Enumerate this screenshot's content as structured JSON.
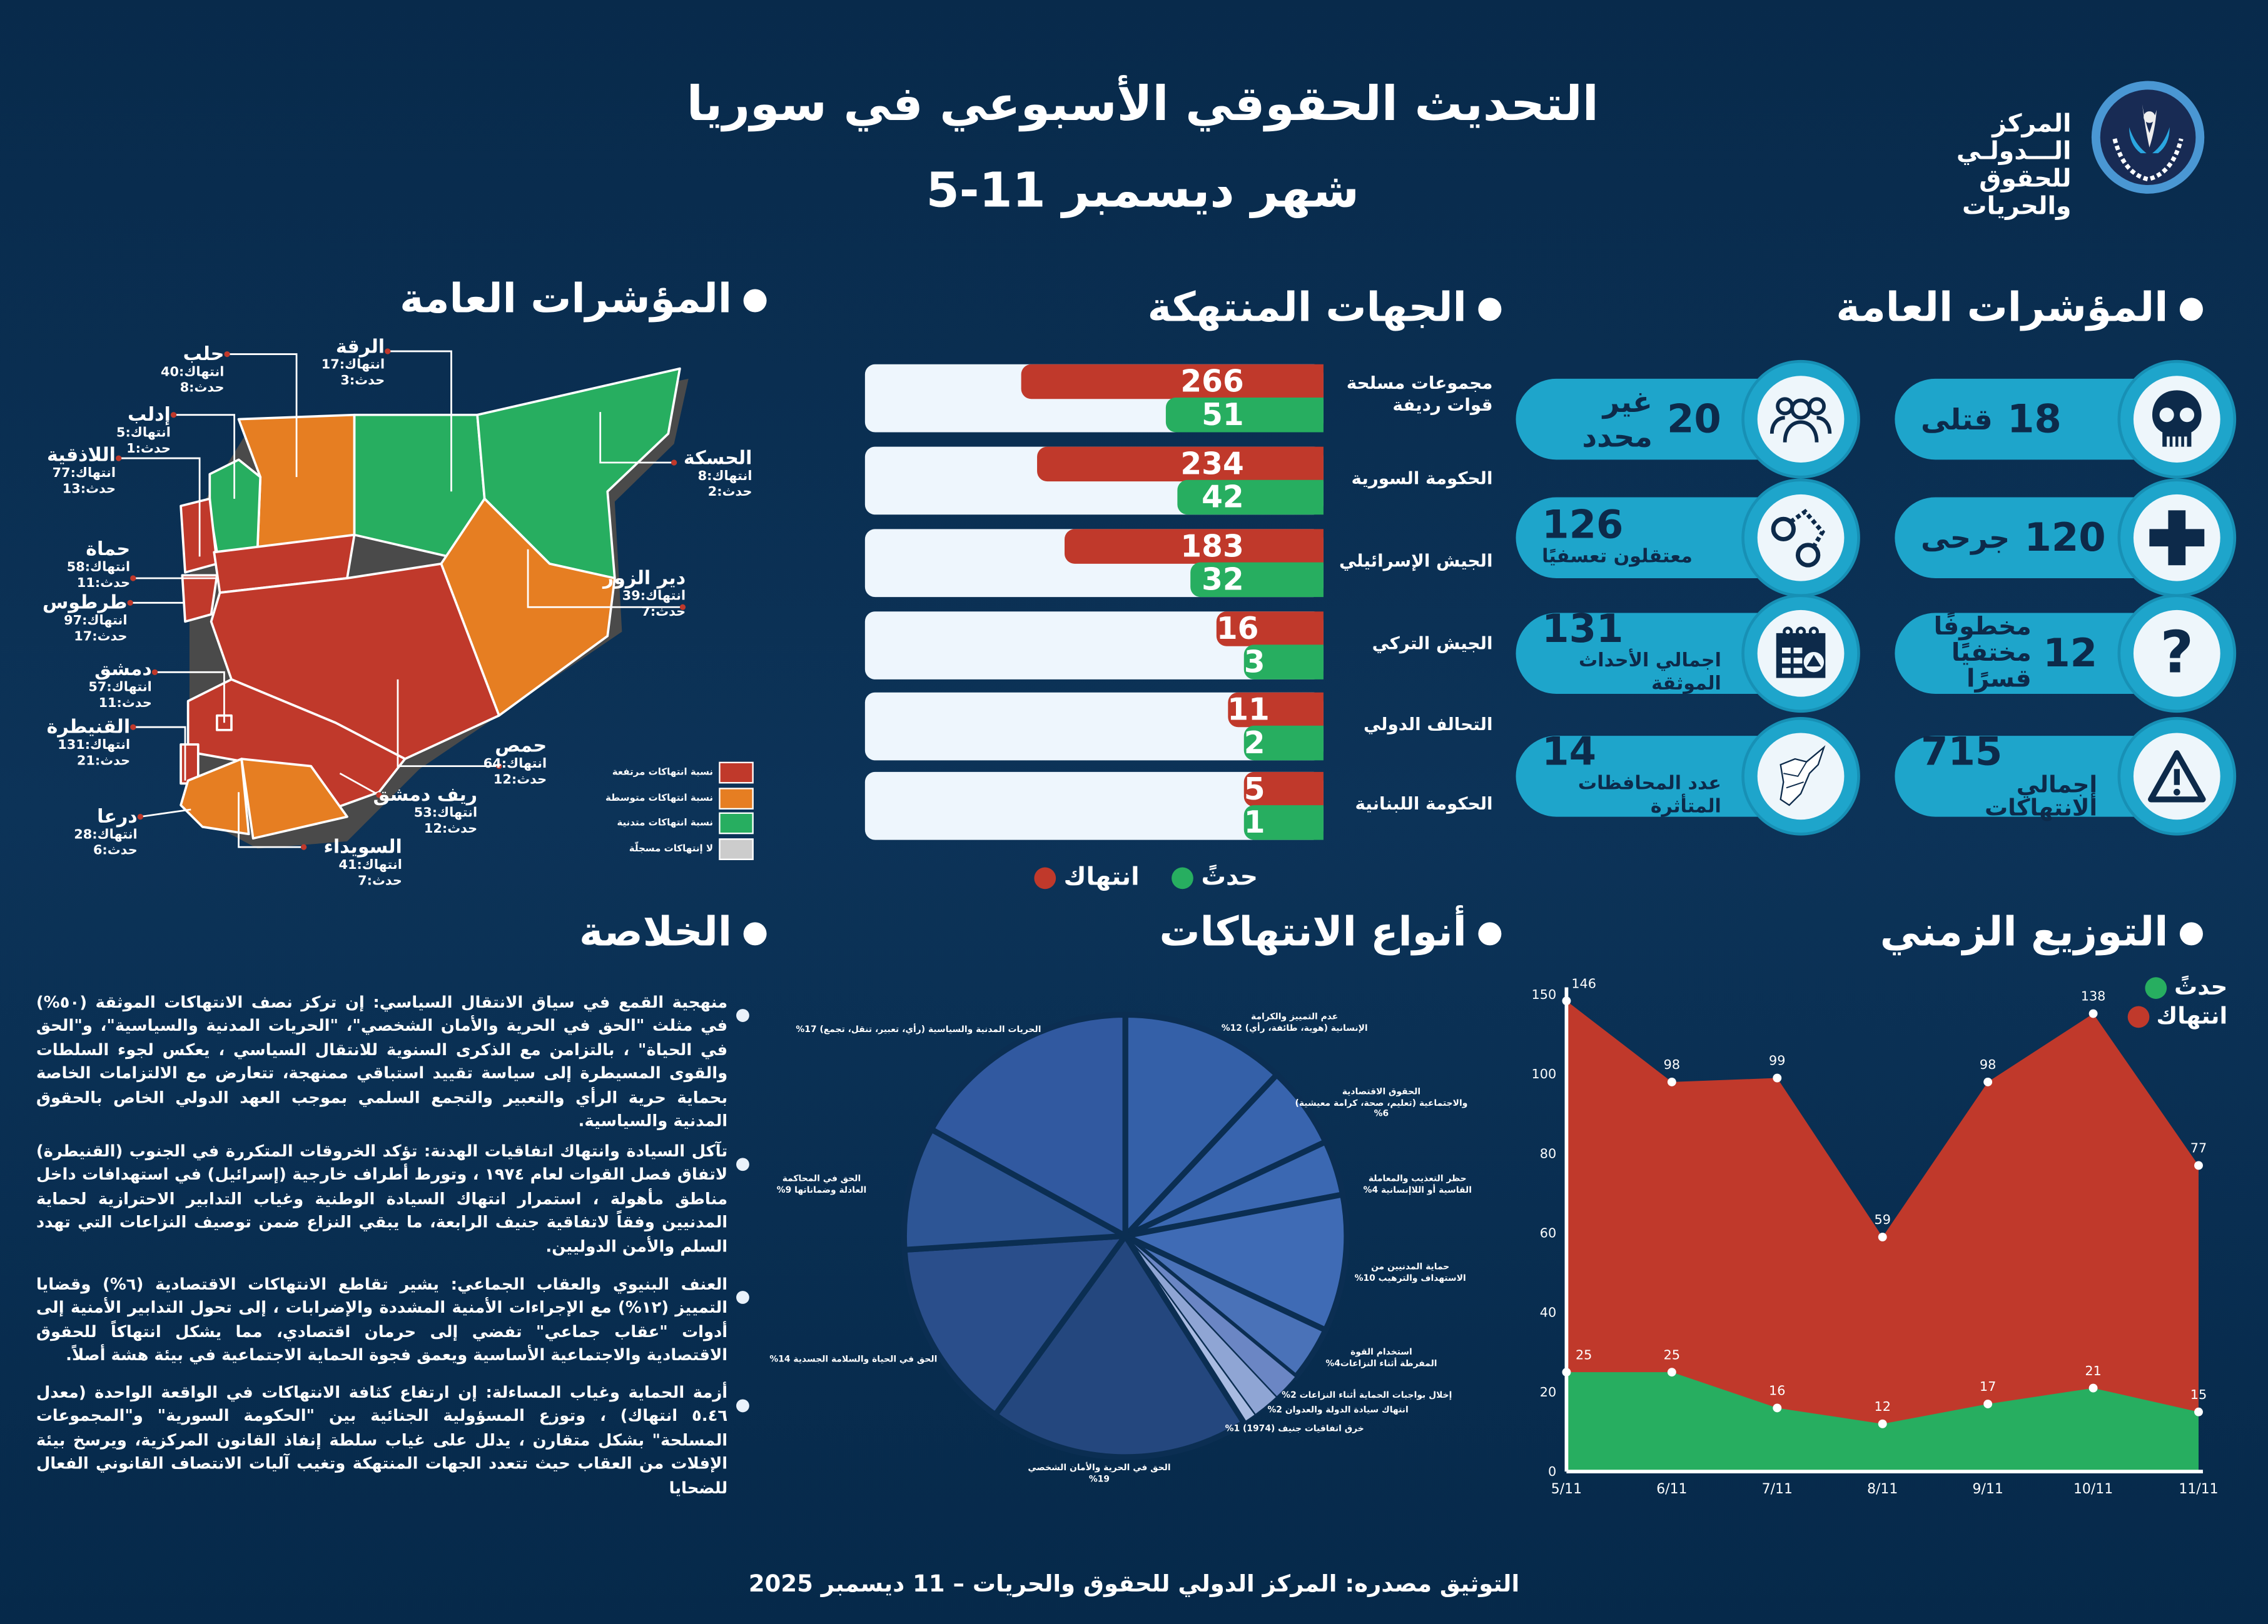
{
  "header": {
    "title": "التحديث الحقوقي الأسبوعي في سوريا",
    "subtitle": "شهر ديسمبر 11-5",
    "logo_text_1": "المركز الـــدولـي",
    "logo_text_2": "للحقوق والحريات"
  },
  "sections": {
    "indicators": "المؤشرات العامة",
    "map": "المؤشرات العامة",
    "actors": "الجهات المنتهكة",
    "timeline": "التوزيع الزمني",
    "types": "أنواع الانتهاكات",
    "summary": "الخلاصة"
  },
  "indicators": [
    {
      "value": "18",
      "label": "قتلى",
      "icon": "skull-icon"
    },
    {
      "value": "120",
      "label": "جرحى",
      "icon": "plus-icon"
    },
    {
      "value": "12",
      "label": "مخطوفًا",
      "label2": "مختفيًا قسرًا",
      "icon": "question-icon"
    },
    {
      "value": "715",
      "label": "إجمالي الانتهاكات",
      "icon": "warning-icon"
    },
    {
      "value": "20",
      "label": "غير محدد",
      "icon": "group-icon"
    },
    {
      "value": "126",
      "label": "معتقلون تعسفيًا",
      "icon": "handcuffs-icon"
    },
    {
      "value": "131",
      "label": "اجمالي الأحداث الموثقة",
      "icon": "calendar-alert-icon"
    },
    {
      "value": "14",
      "label": "عدد المحافظات المتأثرة",
      "icon": "syria-map-icon"
    }
  ],
  "actors": {
    "rows": [
      {
        "name": "مجموعات مسلحة",
        "name2": "قوات رديفة",
        "violations": 266,
        "incidents": 51
      },
      {
        "name": "الحكومة السورية",
        "violations": 234,
        "incidents": 42
      },
      {
        "name": "الجيش الإسرائيلي",
        "violations": 183,
        "incidents": 32
      },
      {
        "name": "الجيش التركي",
        "violations": 16,
        "incidents": 3
      },
      {
        "name": "التحالف الدولي",
        "violations": 11,
        "incidents": 2
      },
      {
        "name": "الحكومة اللبنانية",
        "violations": 5,
        "incidents": 1
      }
    ],
    "legend_violation": "انتهاك",
    "legend_incident": "حدثً"
  },
  "colors": {
    "violation": "#c0392b",
    "incident": "#27ae60",
    "medium": "#e67e22",
    "none": "#cccccc",
    "accent": "#1ea5cb"
  },
  "map": {
    "violation_label": "انتهاك",
    "incident_label": "حدث",
    "governorates": [
      {
        "name": "حلب",
        "violations": 40,
        "incidents": 8,
        "level": "medium"
      },
      {
        "name": "الرقة",
        "violations": 17,
        "incidents": 3,
        "level": "low"
      },
      {
        "name": "إدلب",
        "violations": 5,
        "incidents": 1,
        "level": "low"
      },
      {
        "name": "اللاذقية",
        "violations": 77,
        "incidents": 13,
        "level": "high"
      },
      {
        "name": "الحسكة",
        "violations": 8,
        "incidents": 2,
        "level": "low"
      },
      {
        "name": "حماة",
        "violations": 58,
        "incidents": 11,
        "level": "high"
      },
      {
        "name": "طرطوس",
        "violations": 97,
        "incidents": 17,
        "level": "high"
      },
      {
        "name": "دير الزور",
        "violations": 39,
        "incidents": 7,
        "level": "medium"
      },
      {
        "name": "دمشق",
        "violations": 57,
        "incidents": 11,
        "level": "high"
      },
      {
        "name": "القنيطرة",
        "violations": 131,
        "incidents": 21,
        "level": "high"
      },
      {
        "name": "حمص",
        "violations": 64,
        "incidents": 12,
        "level": "high"
      },
      {
        "name": "ريف دمشق",
        "violations": 53,
        "incidents": 12,
        "level": "high"
      },
      {
        "name": "درعا",
        "violations": 28,
        "incidents": 6,
        "level": "medium"
      },
      {
        "name": "السويداء",
        "violations": 41,
        "incidents": 7,
        "level": "medium"
      }
    ],
    "legend": [
      {
        "label": "نسبة انتهاكات مرتفعة",
        "color": "#c0392b"
      },
      {
        "label": "نسبة انتهاكات متوسطة",
        "color": "#e67e22"
      },
      {
        "label": "نسبة انتهاكات متدنية",
        "color": "#27ae60"
      },
      {
        "label": "لا إنتهاكات مسجلّة",
        "color": "#cccccc"
      }
    ]
  },
  "chart_data": [
    {
      "type": "area",
      "categories": [
        "5/11",
        "6/11",
        "7/11",
        "8/11",
        "9/11",
        "10/11",
        "11/11"
      ],
      "yticks": [
        0,
        20,
        40,
        60,
        80,
        100,
        150
      ],
      "ylim": [
        0,
        150
      ],
      "legend_placement": "top-right",
      "series": [
        {
          "name": "انتهاك",
          "color": "#c0392b",
          "values": [
            146,
            98,
            99,
            59,
            98,
            138,
            77
          ]
        },
        {
          "name": "حدثً",
          "color": "#27ae60",
          "values": [
            25,
            25,
            16,
            12,
            17,
            21,
            15
          ]
        }
      ]
    },
    {
      "type": "pie",
      "slices": [
        {
          "label": "عدم التمييز والكرامة\nالإنسانية (هوية، طائفة، رأي)  12%",
          "value": 12,
          "color": "#3460a8"
        },
        {
          "label": "الحقوق الاقتصادية\nوالاجتماعية (تعليم، صحة، كرامة معيشية)\n%6",
          "value": 6,
          "color": "#3864ae"
        },
        {
          "label": "حظر التعذيب والمعاملة\nالقاسية أو اللاإنسانية  4%",
          "value": 4,
          "color": "#3b68b2"
        },
        {
          "label": "حماية المدنيين من\nالاستهداف والترهيب  10%",
          "value": 10,
          "color": "#3f6bb5"
        },
        {
          "label": "استخدام القوة\nالمفرطة أثناء النزاعات4%",
          "value": 4,
          "color": "#4a72b8"
        },
        {
          "label": "إخلال بواجبات الحماية أثناء النزاعات 2%",
          "value": 2,
          "color": "#6b86c4"
        },
        {
          "label": "انتهاك سيادة الدولة والعدوان  2%",
          "value": 2,
          "color": "#8fa5d4"
        },
        {
          "label": "خرق اتفاقيات جنيف (1974)  1%",
          "value": 1,
          "color": "#a9bbe1"
        },
        {
          "label": "الحق في الحرية والأمان الشخصي\n%19",
          "value": 19,
          "color": "#24477e"
        },
        {
          "label": "الحق في الحياة والسلامة الجسدية 14%",
          "value": 14,
          "color": "#2a4e8b"
        },
        {
          "label": "الحق في المحاكمة\nالعادلة وضماناتها 9%",
          "value": 9,
          "color": "#2d5595"
        },
        {
          "label": "الحريات المدنية والسياسية (رأي، تعبير، تنقل، تجمع) 17%",
          "value": 17,
          "color": "#3159a0"
        }
      ]
    }
  ],
  "summary": [
    "منهجية القمع في سياق الانتقال السياسي: إن تركز نصف الانتهاكات الموثقة (٥٠%) في مثلث \"الحق في الحرية والأمان الشخصي\"، \"الحريات المدنية والسياسية\"، و\"الحق في الحياة\" ، بالتزامن مع الذكرى السنوية للانتقال السياسي ، يعكس لجوء السلطات والقوى المسيطرة إلى سياسة تقييد استباقي ممنهجة، تتعارض مع الالتزامات الخاصة بحماية حرية الرأي والتعبير والتجمع السلمي بموجب العهد الدولي الخاص بالحقوق المدنية والسياسية.",
    "تآكل السيادة وانتهاك اتفاقيات الهدنة: تؤكد الخروقات المتكررة في الجنوب (القنيطرة) لاتفاق فصل القوات لعام ١٩٧٤ ، وتورط أطراف خارجية (إسرائيل) في استهدافات داخل مناطق مأهولة ، استمرار انتهاك السيادة الوطنية وغياب التدابير الاحترازية لحماية المدنيين وفقاً لاتفاقية جنيف الرابعة، ما يبقي النزاع ضمن توصيف النزاعات التي تهدد السلم والأمن الدوليين.",
    "العنف البنيوي والعقاب الجماعي: يشير تقاطع الانتهاكات الاقتصادية (٦%) وقضايا التمييز (١٢%) مع الإجراءات الأمنية المشددة والإضرابات ، إلى تحول التدابير الأمنية إلى أدوات \"عقاب جماعي\" تفضي إلى حرمان اقتصادي، مما يشكل انتهاكاً للحقوق الاقتصادية والاجتماعية الأساسية ويعمق فجوة الحماية الاجتماعية في بيئة هشة أصلاً.",
    "أزمة الحماية وغياب المساءلة: إن ارتفاع كثافة الانتهاكات في الواقعة الواحدة (معدل ٥.٤٦ انتهاك) ، وتوزع المسؤولية الجنائية بين \"الحكومة السورية\" و\"المجموعات المسلحة\" بشكل متقارن ، يدلل على غياب سلطة إنفاذ القانون المركزية، ويرسخ بيئة الإفلات من العقاب حيث تتعدد الجهات المنتهكة وتغيب آليات الانتصاف القانوني الفعال للضحايا"
  ],
  "footer": "التوثيق مصدره: المركز الدولي للحقوق والحريات – 11 ديسمبر 2025"
}
